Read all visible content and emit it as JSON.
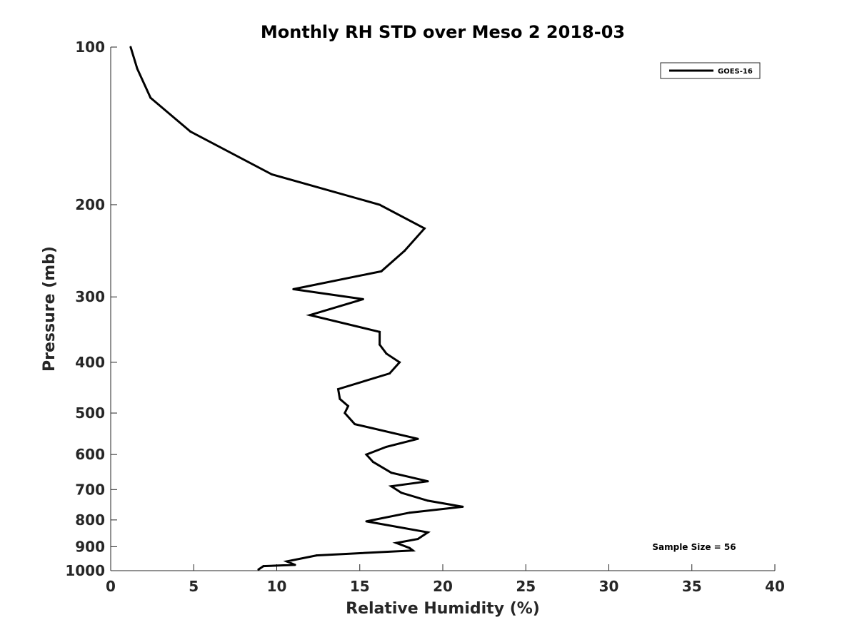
{
  "chart_data": {
    "type": "line",
    "title": "Monthly RH STD over Meso 2  2018-03",
    "xlabel": "Relative Humidity (%)",
    "ylabel": "Pressure (mb)",
    "xlim": [
      0,
      40
    ],
    "ylim": [
      100,
      1000
    ],
    "y_scale": "log",
    "y_reversed": true,
    "x_ticks": [
      0,
      5,
      10,
      15,
      20,
      25,
      30,
      35,
      40
    ],
    "y_ticks": [
      100,
      200,
      300,
      400,
      500,
      600,
      700,
      800,
      900,
      1000
    ],
    "grid": false,
    "legend_position": "top-right",
    "series": [
      {
        "name": "GOES-16",
        "color": "#000000",
        "x": [
          1.2,
          1.6,
          2.4,
          4.8,
          9.7,
          16.2,
          18.9,
          17.7,
          16.3,
          11.0,
          15.2,
          12.0,
          16.2,
          16.2,
          16.6,
          17.4,
          16.8,
          13.7,
          13.8,
          14.3,
          14.1,
          14.7,
          18.5,
          16.6,
          15.4,
          15.8,
          16.9,
          19.1,
          16.9,
          17.5,
          19.1,
          21.2,
          18.0,
          15.4,
          19.1,
          18.5,
          17.2,
          18.0,
          18.2,
          12.4,
          10.6,
          11.1,
          9.2,
          8.9
        ],
        "y": [
          100,
          110,
          125,
          145,
          175,
          200,
          222,
          245,
          268,
          290,
          303,
          325,
          350,
          370,
          385,
          400,
          420,
          450,
          470,
          485,
          500,
          525,
          560,
          580,
          600,
          620,
          650,
          675,
          690,
          710,
          735,
          755,
          775,
          805,
          845,
          870,
          885,
          905,
          915,
          935,
          960,
          975,
          980,
          995
        ]
      }
    ],
    "annotations": [
      "Sample Size = 56"
    ]
  }
}
